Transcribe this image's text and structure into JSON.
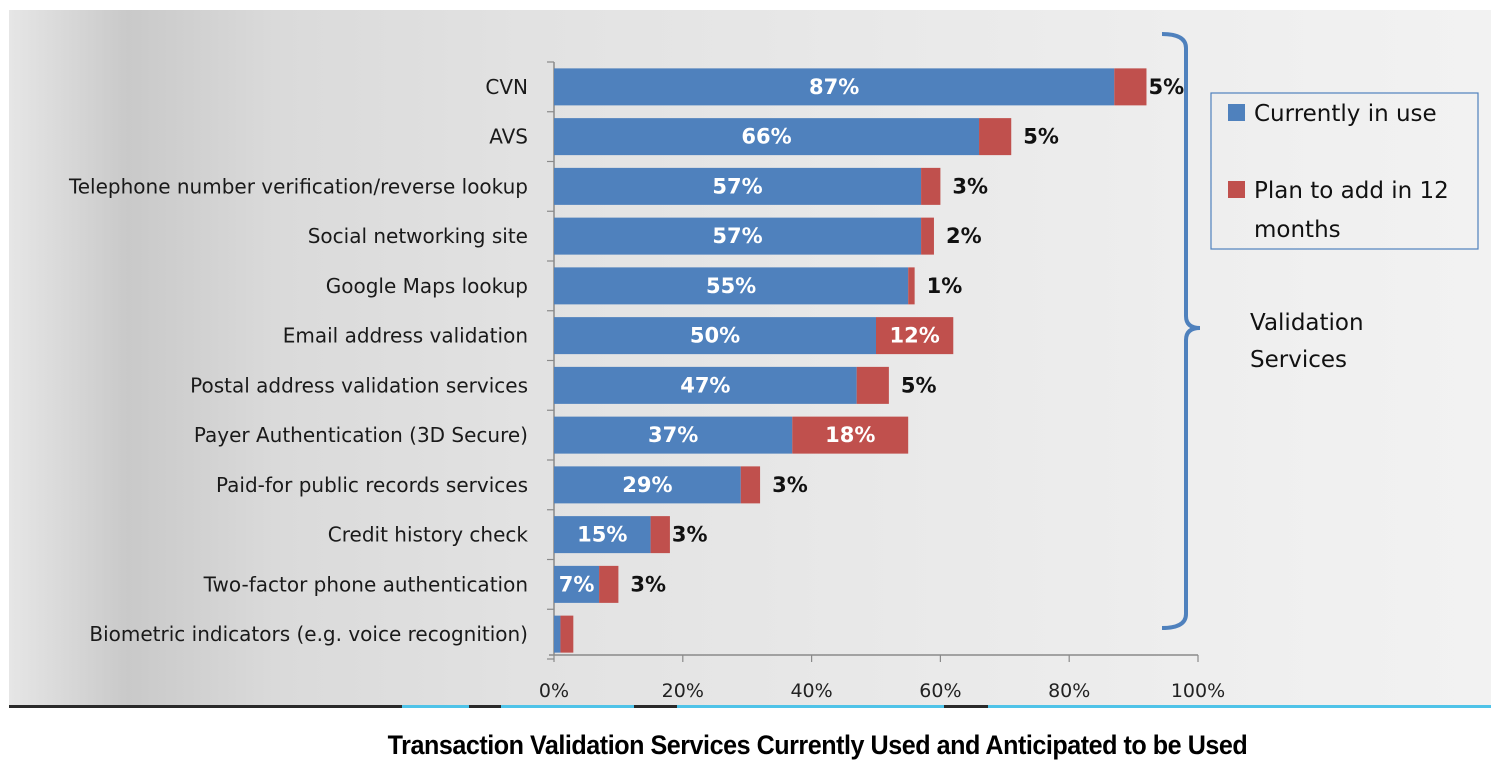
{
  "chart_data": {
    "type": "bar",
    "orientation": "horizontal",
    "stacked": true,
    "title": "Transaction Validation Services Currently Used and Anticipated to be Used",
    "xlabel": "",
    "ylabel": "",
    "xlim": [
      0,
      100
    ],
    "x_ticks": [
      "0%",
      "20%",
      "40%",
      "60%",
      "80%",
      "100%"
    ],
    "categories": [
      "CVN",
      "AVS",
      "Telephone number verification/reverse lookup",
      "Social networking site",
      "Google Maps lookup",
      "Email address validation",
      "Postal address validation services",
      "Payer Authentication (3D Secure)",
      "Paid-for public records services",
      "Credit history check",
      "Two-factor phone authentication",
      "Biometric indicators (e.g. voice recognition)"
    ],
    "series": [
      {
        "name": "Currently in use",
        "color": "#4f81bd",
        "values": [
          87,
          66,
          57,
          57,
          55,
          50,
          47,
          37,
          29,
          15,
          7,
          1
        ],
        "labels": [
          "87%",
          "66%",
          "57%",
          "57%",
          "55%",
          "50%",
          "47%",
          "37%",
          "29%",
          "15%",
          "7%",
          ""
        ]
      },
      {
        "name": "Plan to add in 12 months",
        "color": "#c0504d",
        "values": [
          5,
          5,
          3,
          2,
          1,
          12,
          5,
          18,
          3,
          3,
          3,
          2
        ],
        "labels": [
          "5%",
          "5%",
          "3%",
          "2%",
          "1%",
          "12%",
          "5%",
          "18%",
          "3%",
          "3%",
          "3%",
          ""
        ],
        "label_inside": [
          false,
          false,
          false,
          false,
          false,
          true,
          false,
          true,
          false,
          false,
          false,
          false
        ]
      }
    ],
    "legend": {
      "position": "right",
      "entries": [
        "Currently in use",
        "Plan to add in 12 months"
      ]
    },
    "annotation": {
      "type": "brace",
      "text_lines": [
        "Validation",
        "Services"
      ],
      "color": "#4f81bd"
    },
    "grid": false
  }
}
